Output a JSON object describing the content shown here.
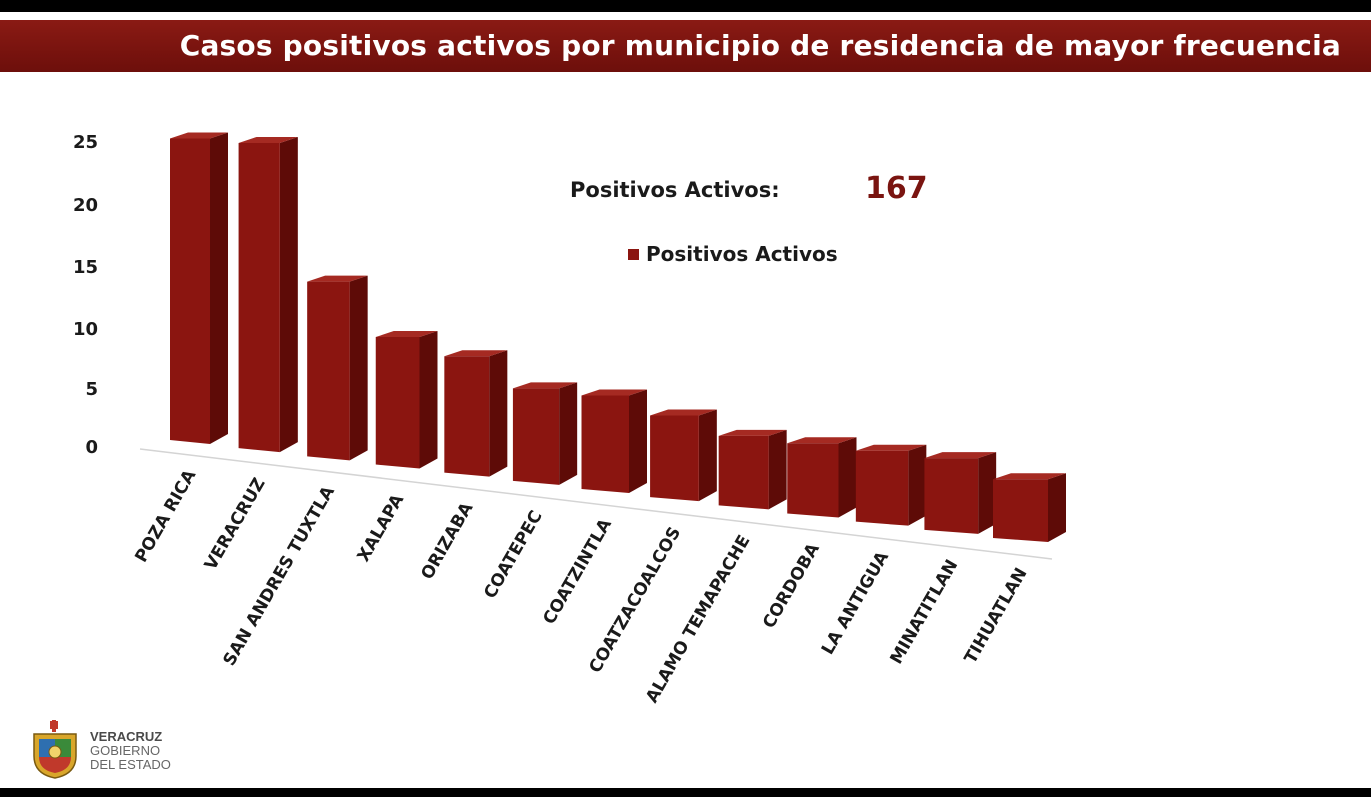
{
  "title": "Casos positivos activos por municipio de residencia de mayor frecuencia",
  "summary": {
    "label": "Positivos Activos:",
    "value": "167"
  },
  "logo": {
    "line1": "VERACRUZ",
    "line2": "GOBIERNO",
    "line3": "DEL ESTADO"
  },
  "colors": {
    "bar_front": "#8b1510",
    "bar_side": "#5e0b07",
    "bar_top": "#a52a22",
    "title_bg": "#7a1410"
  },
  "chart_data": {
    "type": "bar",
    "title": "",
    "xlabel": "",
    "ylabel": "",
    "ylim": [
      0,
      25
    ],
    "yticks": [
      "0",
      "5",
      "10",
      "15",
      "20",
      "25"
    ],
    "legend": {
      "position": "top-right",
      "entries": [
        "Positivos Activos"
      ]
    },
    "categories": [
      "POZA RICA",
      "VERACRUZ",
      "SAN ANDRES TUXTLA",
      "XALAPA",
      "ORIZABA",
      "COATEPEC",
      "COATZINTLA",
      "COATZACOALCOS",
      "ALAMO TEMAPACHE",
      "CORDOBA",
      "LA ANTIGUA",
      "MINATITLAN",
      "TIHUATLAN"
    ],
    "series": [
      {
        "name": "Positivos Activos",
        "values": [
          25,
          25,
          14,
          10,
          9,
          7,
          7,
          6,
          5,
          5,
          5,
          5,
          4
        ]
      }
    ]
  }
}
